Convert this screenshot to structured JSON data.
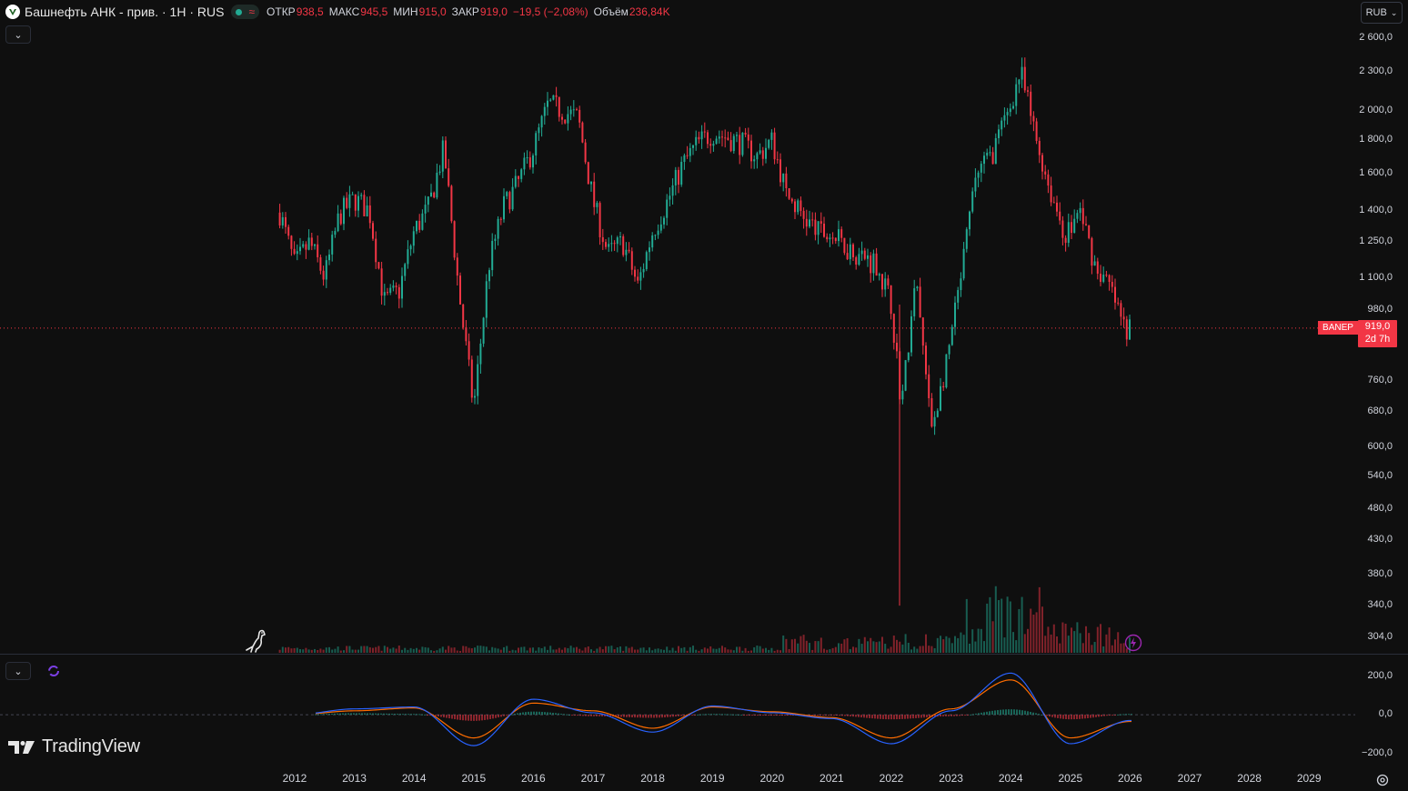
{
  "header": {
    "symbol_title": "Башнефть АНК - прив. · 1Н · RUS",
    "status_icon": "market-status-dot",
    "delay_icon": "≈",
    "ohlc": [
      {
        "key": "ОТКР",
        "value": "938,5"
      },
      {
        "key": "МАКС",
        "value": "945,5"
      },
      {
        "key": "МИН",
        "value": "915,0"
      },
      {
        "key": "ЗАКР",
        "value": "919,0"
      }
    ],
    "change": "−19,5 (−2,08%)",
    "volume_label": "Объём",
    "volume_value": "236,84K",
    "collapse_icon": "chevron-down-icon"
  },
  "currency": {
    "label": "RUB",
    "icon": "chevron-down-icon"
  },
  "price_axis": [
    "2 600,0",
    "2 300,0",
    "2 000,0",
    "1 800,0",
    "1 600,0",
    "1 400,0",
    "1 250,0",
    "1 100,0",
    "980,0",
    "760,0",
    "680,0",
    "600,0",
    "540,0",
    "480,0",
    "430,0",
    "380,0",
    "340,0",
    "304,0"
  ],
  "price_marker": {
    "ticker": "BANEP",
    "price": "919,0",
    "countdown": "2d 7h",
    "color": "#f23645"
  },
  "indicator_axis": [
    "200,0",
    "0,0",
    "−200,0"
  ],
  "time_axis": [
    "2012",
    "2013",
    "2014",
    "2015",
    "2016",
    "2017",
    "2018",
    "2019",
    "2020",
    "2021",
    "2022",
    "2023",
    "2024",
    "2025",
    "2026",
    "2027",
    "2028",
    "2029"
  ],
  "branding": {
    "name": "TradingView"
  },
  "colors": {
    "up": "#22ab94",
    "down": "#f23645",
    "macd": "#2962ff",
    "signal": "#ff6d00",
    "background": "#0f0f0f"
  },
  "chart_data": {
    "type": "candlestick",
    "scale": "log",
    "title": "Башнефть АНК - прив. · 1Н · RUS",
    "ylim": [
      290,
      2700
    ],
    "x": [
      "2011-10",
      "2012-01",
      "2012-04",
      "2012-07",
      "2012-10",
      "2013-01",
      "2013-04",
      "2013-07",
      "2013-10",
      "2014-01",
      "2014-04",
      "2014-07",
      "2014-10",
      "2015-01",
      "2015-04",
      "2015-07",
      "2015-10",
      "2016-01",
      "2016-04",
      "2016-07",
      "2016-10",
      "2017-01",
      "2017-04",
      "2017-07",
      "2017-10",
      "2018-01",
      "2018-04",
      "2018-07",
      "2018-10",
      "2019-01",
      "2019-04",
      "2019-07",
      "2019-10",
      "2020-01",
      "2020-04",
      "2020-07",
      "2020-10",
      "2021-01",
      "2021-04",
      "2021-07",
      "2021-10",
      "2022-01",
      "2022-03",
      "2022-06",
      "2022-09",
      "2022-12",
      "2023-03",
      "2023-06",
      "2023-09",
      "2023-12",
      "2024-03",
      "2024-06",
      "2024-09",
      "2024-12",
      "2025-03",
      "2025-06",
      "2025-09",
      "2025-12",
      "2026-01"
    ],
    "close": [
      1390,
      1150,
      1250,
      1100,
      1380,
      1460,
      1400,
      1010,
      1050,
      1300,
      1420,
      1750,
      1050,
      690,
      1150,
      1420,
      1550,
      1750,
      2050,
      2000,
      1950,
      1450,
      1200,
      1250,
      1070,
      1300,
      1450,
      1650,
      1780,
      1850,
      1820,
      1780,
      1700,
      1800,
      1480,
      1380,
      1300,
      1280,
      1230,
      1190,
      1160,
      1000,
      700,
      1090,
      640,
      800,
      1100,
      1600,
      1700,
      1950,
      2300,
      1820,
      1500,
      1280,
      1400,
      1150,
      1060,
      910,
      919
    ],
    "volume_note": "Volume bars along bottom, spike around 2023",
    "indicator": {
      "type": "MACD",
      "ylim": [
        -230,
        240
      ],
      "x": [
        "2012",
        "2013",
        "2014",
        "2015",
        "2016",
        "2017",
        "2018",
        "2019",
        "2020",
        "2021",
        "2022",
        "2023",
        "2024",
        "2025",
        "2026"
      ],
      "macd": [
        0,
        30,
        40,
        -160,
        80,
        10,
        -90,
        45,
        10,
        -20,
        -150,
        20,
        215,
        -150,
        -30
      ],
      "signal": [
        0,
        20,
        35,
        -120,
        60,
        20,
        -70,
        40,
        15,
        -15,
        -120,
        30,
        180,
        -120,
        -35
      ]
    }
  }
}
